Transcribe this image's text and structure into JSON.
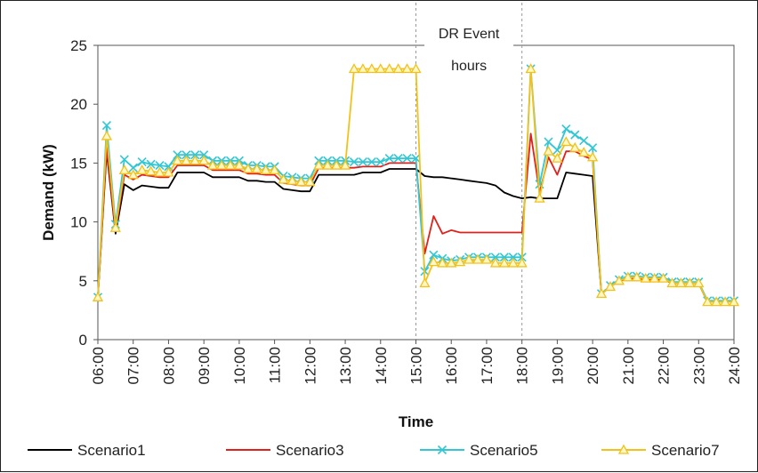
{
  "chart_data": {
    "type": "line",
    "title": "",
    "xlabel": "Time",
    "ylabel": "Demand (kW)",
    "ylim": [
      0,
      25
    ],
    "yticks": [
      "0",
      "5",
      "10",
      "15",
      "20",
      "25"
    ],
    "xlim": [
      6,
      24
    ],
    "xticks": [
      "06:00",
      "07:00",
      "08:00",
      "09:00",
      "10:00",
      "11:00",
      "12:00",
      "13:00",
      "14:00",
      "15:00",
      "16:00",
      "17:00",
      "18:00",
      "19:00",
      "20:00",
      "21:00",
      "22:00",
      "23:00",
      "24:00"
    ],
    "grid": false,
    "legend_position": "bottom",
    "annotation": {
      "lines": [
        "DR Event",
        "hours"
      ],
      "start": 15,
      "end": 18
    },
    "series": [
      {
        "name": "Scenario1",
        "color": "#000000",
        "marker": "none",
        "points": [
          [
            6,
            3.6
          ],
          [
            6.25,
            16.0
          ],
          [
            6.5,
            9.0
          ],
          [
            6.75,
            13.2
          ],
          [
            7,
            12.7
          ],
          [
            7.25,
            13.1
          ],
          [
            7.5,
            13.0
          ],
          [
            7.75,
            12.9
          ],
          [
            8,
            12.9
          ],
          [
            8.25,
            14.2
          ],
          [
            8.5,
            14.2
          ],
          [
            8.75,
            14.2
          ],
          [
            9,
            14.2
          ],
          [
            9.25,
            13.8
          ],
          [
            9.5,
            13.8
          ],
          [
            9.75,
            13.8
          ],
          [
            10,
            13.8
          ],
          [
            10.25,
            13.5
          ],
          [
            10.5,
            13.5
          ],
          [
            10.75,
            13.4
          ],
          [
            11,
            13.4
          ],
          [
            11.25,
            12.8
          ],
          [
            11.5,
            12.7
          ],
          [
            11.75,
            12.6
          ],
          [
            12,
            12.6
          ],
          [
            12.25,
            14.0
          ],
          [
            12.5,
            14.0
          ],
          [
            12.75,
            14.0
          ],
          [
            13,
            14.0
          ],
          [
            13.25,
            14.0
          ],
          [
            13.5,
            14.2
          ],
          [
            13.75,
            14.2
          ],
          [
            14,
            14.2
          ],
          [
            14.25,
            14.5
          ],
          [
            14.5,
            14.5
          ],
          [
            14.75,
            14.5
          ],
          [
            15,
            14.5
          ],
          [
            15.25,
            13.9
          ],
          [
            15.5,
            13.8
          ],
          [
            15.75,
            13.8
          ],
          [
            16,
            13.7
          ],
          [
            16.25,
            13.6
          ],
          [
            16.5,
            13.5
          ],
          [
            16.75,
            13.4
          ],
          [
            17,
            13.3
          ],
          [
            17.25,
            13.1
          ],
          [
            17.5,
            12.5
          ],
          [
            17.75,
            12.2
          ],
          [
            18,
            12.0
          ],
          [
            18.25,
            12.1
          ],
          [
            18.5,
            12.0
          ],
          [
            18.75,
            12.0
          ],
          [
            19,
            12.0
          ],
          [
            19.25,
            14.2
          ],
          [
            19.5,
            14.1
          ],
          [
            19.75,
            14.0
          ],
          [
            20,
            13.9
          ],
          [
            20.25,
            3.9
          ],
          [
            20.5,
            4.5
          ],
          [
            20.75,
            5.0
          ],
          [
            21,
            5.2
          ],
          [
            21.25,
            5.2
          ],
          [
            21.5,
            5.1
          ],
          [
            21.75,
            5.1
          ],
          [
            22,
            5.1
          ],
          [
            22.25,
            4.8
          ],
          [
            22.5,
            4.8
          ],
          [
            22.75,
            4.8
          ],
          [
            23,
            4.8
          ],
          [
            23.25,
            3.2
          ],
          [
            23.5,
            3.2
          ],
          [
            23.75,
            3.2
          ],
          [
            24,
            3.2
          ]
        ]
      },
      {
        "name": "Scenario3",
        "color": "#e0201b",
        "marker": "none",
        "points": [
          [
            6,
            3.6
          ],
          [
            6.25,
            16.3
          ],
          [
            6.5,
            9.2
          ],
          [
            6.75,
            14.0
          ],
          [
            7,
            13.6
          ],
          [
            7.25,
            14.0
          ],
          [
            7.5,
            13.9
          ],
          [
            7.75,
            13.8
          ],
          [
            8,
            13.8
          ],
          [
            8.25,
            14.8
          ],
          [
            8.5,
            14.8
          ],
          [
            8.75,
            14.8
          ],
          [
            9,
            14.8
          ],
          [
            9.25,
            14.4
          ],
          [
            9.5,
            14.4
          ],
          [
            9.75,
            14.4
          ],
          [
            10,
            14.4
          ],
          [
            10.25,
            14.1
          ],
          [
            10.5,
            14.1
          ],
          [
            10.75,
            14.0
          ],
          [
            11,
            14.0
          ],
          [
            11.25,
            13.3
          ],
          [
            11.5,
            13.2
          ],
          [
            11.75,
            13.1
          ],
          [
            12,
            13.1
          ],
          [
            12.25,
            14.6
          ],
          [
            12.5,
            14.6
          ],
          [
            12.75,
            14.6
          ],
          [
            13,
            14.6
          ],
          [
            13.25,
            14.6
          ],
          [
            13.5,
            14.7
          ],
          [
            13.75,
            14.7
          ],
          [
            14,
            14.7
          ],
          [
            14.25,
            15.0
          ],
          [
            14.5,
            15.0
          ],
          [
            14.75,
            15.0
          ],
          [
            15,
            15.0
          ],
          [
            15.25,
            7.3
          ],
          [
            15.5,
            10.5
          ],
          [
            15.75,
            9.0
          ],
          [
            16,
            9.3
          ],
          [
            16.25,
            9.1
          ],
          [
            16.5,
            9.1
          ],
          [
            16.75,
            9.1
          ],
          [
            17,
            9.1
          ],
          [
            17.25,
            9.1
          ],
          [
            17.5,
            9.1
          ],
          [
            17.75,
            9.1
          ],
          [
            18,
            9.1
          ],
          [
            18.25,
            17.5
          ],
          [
            18.5,
            12.5
          ],
          [
            18.75,
            15.5
          ],
          [
            19,
            14.0
          ],
          [
            19.25,
            16.0
          ],
          [
            19.5,
            16.0
          ],
          [
            19.75,
            15.6
          ],
          [
            20,
            15.3
          ],
          [
            20.25,
            3.9
          ],
          [
            20.5,
            4.5
          ],
          [
            20.75,
            5.0
          ],
          [
            21,
            5.2
          ],
          [
            21.25,
            5.2
          ],
          [
            21.5,
            5.1
          ],
          [
            21.75,
            5.1
          ],
          [
            22,
            5.1
          ],
          [
            22.25,
            4.8
          ],
          [
            22.5,
            4.8
          ],
          [
            22.75,
            4.8
          ],
          [
            23,
            4.8
          ],
          [
            23.25,
            3.2
          ],
          [
            23.5,
            3.2
          ],
          [
            23.75,
            3.2
          ],
          [
            24,
            3.2
          ]
        ]
      },
      {
        "name": "Scenario5",
        "color": "#33c7d4",
        "marker": "x",
        "points": [
          [
            6,
            3.6
          ],
          [
            6.25,
            18.2
          ],
          [
            6.5,
            9.8
          ],
          [
            6.75,
            15.3
          ],
          [
            7,
            14.6
          ],
          [
            7.25,
            15.1
          ],
          [
            7.5,
            14.9
          ],
          [
            7.75,
            14.8
          ],
          [
            8,
            14.7
          ],
          [
            8.25,
            15.7
          ],
          [
            8.5,
            15.7
          ],
          [
            8.75,
            15.7
          ],
          [
            9,
            15.7
          ],
          [
            9.25,
            15.2
          ],
          [
            9.5,
            15.2
          ],
          [
            9.75,
            15.2
          ],
          [
            10,
            15.2
          ],
          [
            10.25,
            14.8
          ],
          [
            10.5,
            14.8
          ],
          [
            10.75,
            14.7
          ],
          [
            11,
            14.7
          ],
          [
            11.25,
            13.9
          ],
          [
            11.5,
            13.8
          ],
          [
            11.75,
            13.7
          ],
          [
            12,
            13.7
          ],
          [
            12.25,
            15.2
          ],
          [
            12.5,
            15.2
          ],
          [
            12.75,
            15.2
          ],
          [
            13,
            15.2
          ],
          [
            13.25,
            15.1
          ],
          [
            13.5,
            15.1
          ],
          [
            13.75,
            15.1
          ],
          [
            14,
            15.1
          ],
          [
            14.25,
            15.4
          ],
          [
            14.5,
            15.4
          ],
          [
            14.75,
            15.4
          ],
          [
            15,
            15.4
          ],
          [
            15.25,
            5.8
          ],
          [
            15.5,
            7.2
          ],
          [
            15.75,
            6.9
          ],
          [
            16,
            6.7
          ],
          [
            16.25,
            6.8
          ],
          [
            16.5,
            7.0
          ],
          [
            16.75,
            7.0
          ],
          [
            17,
            7.0
          ],
          [
            17.25,
            7.0
          ],
          [
            17.5,
            7.0
          ],
          [
            17.75,
            7.0
          ],
          [
            18,
            7.0
          ],
          [
            18.25,
            23.0
          ],
          [
            18.5,
            13.2
          ],
          [
            18.75,
            16.8
          ],
          [
            19,
            16.1
          ],
          [
            19.25,
            17.9
          ],
          [
            19.5,
            17.4
          ],
          [
            19.75,
            16.9
          ],
          [
            20,
            16.3
          ],
          [
            20.25,
            3.9
          ],
          [
            20.5,
            4.6
          ],
          [
            20.75,
            5.1
          ],
          [
            21,
            5.4
          ],
          [
            21.25,
            5.4
          ],
          [
            21.5,
            5.3
          ],
          [
            21.75,
            5.3
          ],
          [
            22,
            5.3
          ],
          [
            22.25,
            4.9
          ],
          [
            22.5,
            4.9
          ],
          [
            22.75,
            4.9
          ],
          [
            23,
            4.9
          ],
          [
            23.25,
            3.3
          ],
          [
            23.5,
            3.3
          ],
          [
            23.75,
            3.3
          ],
          [
            24,
            3.3
          ]
        ]
      },
      {
        "name": "Scenario7",
        "color": "#f2c21a",
        "marker": "triangle",
        "points": [
          [
            6,
            3.6
          ],
          [
            6.25,
            17.3
          ],
          [
            6.5,
            9.5
          ],
          [
            6.75,
            14.4
          ],
          [
            7,
            14.0
          ],
          [
            7.25,
            14.4
          ],
          [
            7.5,
            14.3
          ],
          [
            7.75,
            14.2
          ],
          [
            8,
            14.2
          ],
          [
            8.25,
            15.2
          ],
          [
            8.5,
            15.2
          ],
          [
            8.75,
            15.2
          ],
          [
            9,
            15.2
          ],
          [
            9.25,
            14.8
          ],
          [
            9.5,
            14.8
          ],
          [
            9.75,
            14.8
          ],
          [
            10,
            14.8
          ],
          [
            10.25,
            14.5
          ],
          [
            10.5,
            14.5
          ],
          [
            10.75,
            14.4
          ],
          [
            11,
            14.4
          ],
          [
            11.25,
            13.6
          ],
          [
            11.5,
            13.5
          ],
          [
            11.75,
            13.4
          ],
          [
            12,
            13.4
          ],
          [
            12.25,
            14.8
          ],
          [
            12.5,
            14.8
          ],
          [
            12.75,
            14.8
          ],
          [
            13,
            14.8
          ],
          [
            13.25,
            23.0
          ],
          [
            13.5,
            23.0
          ],
          [
            13.75,
            23.0
          ],
          [
            14,
            23.0
          ],
          [
            14.25,
            23.0
          ],
          [
            14.5,
            23.0
          ],
          [
            14.75,
            23.0
          ],
          [
            15,
            23.0
          ],
          [
            15.25,
            4.8
          ],
          [
            15.5,
            6.6
          ],
          [
            15.75,
            6.5
          ],
          [
            16,
            6.5
          ],
          [
            16.25,
            6.6
          ],
          [
            16.5,
            6.8
          ],
          [
            16.75,
            6.8
          ],
          [
            17,
            6.8
          ],
          [
            17.25,
            6.5
          ],
          [
            17.5,
            6.5
          ],
          [
            17.75,
            6.5
          ],
          [
            18,
            6.5
          ],
          [
            18.25,
            23.0
          ],
          [
            18.5,
            12.0
          ],
          [
            18.75,
            16.0
          ],
          [
            19,
            15.4
          ],
          [
            19.25,
            16.8
          ],
          [
            19.5,
            16.3
          ],
          [
            19.75,
            15.9
          ],
          [
            20,
            15.5
          ],
          [
            20.25,
            3.9
          ],
          [
            20.5,
            4.5
          ],
          [
            20.75,
            5.0
          ],
          [
            21,
            5.3
          ],
          [
            21.25,
            5.3
          ],
          [
            21.5,
            5.2
          ],
          [
            21.75,
            5.2
          ],
          [
            22,
            5.2
          ],
          [
            22.25,
            4.8
          ],
          [
            22.5,
            4.8
          ],
          [
            22.75,
            4.8
          ],
          [
            23,
            4.8
          ],
          [
            23.25,
            3.2
          ],
          [
            23.5,
            3.2
          ],
          [
            23.75,
            3.2
          ],
          [
            24,
            3.2
          ]
        ]
      }
    ]
  }
}
